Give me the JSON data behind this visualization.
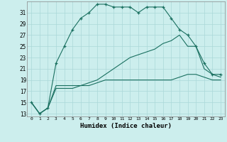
{
  "xlabel": "Humidex (Indice chaleur)",
  "background_color": "#cceeed",
  "grid_color": "#aad8d8",
  "line_color": "#1a7060",
  "xlim": [
    -0.5,
    23.5
  ],
  "ylim": [
    12.5,
    33
  ],
  "yticks": [
    13,
    15,
    17,
    19,
    21,
    23,
    25,
    27,
    29,
    31
  ],
  "xticks": [
    0,
    1,
    2,
    3,
    4,
    5,
    6,
    7,
    8,
    9,
    10,
    11,
    12,
    13,
    14,
    15,
    16,
    17,
    18,
    19,
    20,
    21,
    22,
    23
  ],
  "line1_x": [
    0,
    1,
    2,
    3,
    4,
    5,
    6,
    7,
    8,
    9,
    10,
    11,
    12,
    13,
    14,
    15,
    16,
    17,
    18,
    19,
    20,
    21,
    22,
    23
  ],
  "line1_y": [
    15,
    13,
    14,
    22,
    25,
    28,
    30,
    31,
    32.5,
    32.5,
    32,
    32,
    32,
    31,
    32,
    32,
    32,
    30,
    28,
    27,
    25,
    22,
    20,
    20
  ],
  "line2_x": [
    0,
    1,
    2,
    3,
    4,
    5,
    6,
    7,
    8,
    9,
    10,
    11,
    12,
    13,
    14,
    15,
    16,
    17,
    18,
    19,
    20,
    21,
    22,
    23
  ],
  "line2_y": [
    15,
    13,
    14,
    18,
    18,
    18,
    18,
    18,
    18.5,
    19,
    19,
    19,
    19,
    19,
    19,
    19,
    19,
    19,
    19.5,
    20,
    20,
    19.5,
    19,
    19
  ],
  "line3_x": [
    0,
    1,
    2,
    3,
    4,
    5,
    6,
    7,
    8,
    9,
    10,
    11,
    12,
    13,
    14,
    15,
    16,
    17,
    18,
    19,
    20,
    21,
    22,
    23
  ],
  "line3_y": [
    15,
    13,
    14,
    17.5,
    17.5,
    17.5,
    18,
    18.5,
    19,
    20,
    21,
    22,
    23,
    23.5,
    24,
    24.5,
    25.5,
    26,
    27,
    25,
    25,
    21,
    20,
    19.5
  ]
}
